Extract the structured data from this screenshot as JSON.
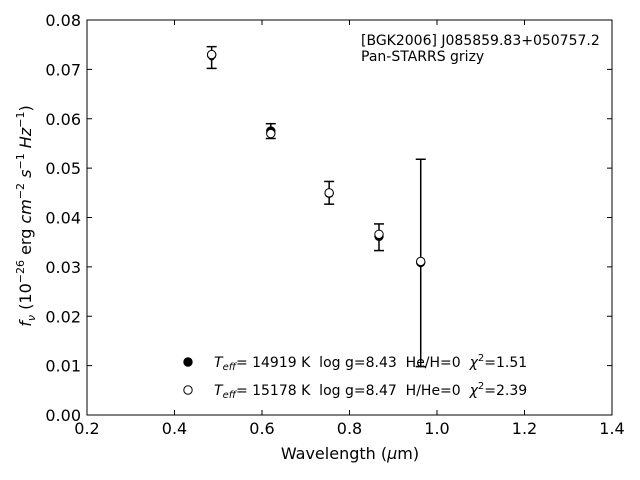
{
  "chart_data": {
    "type": "scatter",
    "title": "",
    "xlabel": "Wavelength (μm)",
    "ylabel": "f_ν (10^−26 erg cm^−2 s^−1 Hz^−1)",
    "xlim": [
      0.2,
      1.4
    ],
    "ylim": [
      0.0,
      0.08
    ],
    "xticks": [
      "0.2",
      "0.4",
      "0.6",
      "0.8",
      "1.0",
      "1.2",
      "1.4"
    ],
    "yticks": [
      "0.00",
      "0.01",
      "0.02",
      "0.03",
      "0.04",
      "0.05",
      "0.06",
      "0.07",
      "0.08"
    ],
    "grid": false,
    "legend_position": "bottom-center",
    "annotation": {
      "object": "[BGK2006] J085859.83+050757.2",
      "survey": "Pan-STARRS grizy"
    },
    "observed": {
      "x": [
        0.4849,
        0.6201,
        0.7535,
        0.8674,
        0.9628
      ],
      "y": [
        0.0724,
        0.0575,
        0.045,
        0.036,
        0.0308
      ],
      "yerr": [
        0.0022,
        0.0015,
        0.0023,
        0.0027,
        0.021
      ]
    },
    "series": [
      {
        "name_prefix": "T",
        "name_sub": "eff",
        "name_rest": "= 14919 K  log g=8.43  He/H=0  χ",
        "name_sup": "2",
        "name_end": "=1.51",
        "marker": "filled-circle",
        "x": [
          0.4849,
          0.6201,
          0.7535,
          0.8674,
          0.9628
        ],
        "y": [
          0.0729,
          0.0575,
          0.0449,
          0.0362,
          0.0309
        ]
      },
      {
        "name_prefix": "T",
        "name_sub": "eff",
        "name_rest": "= 15178 K  log g=8.47  H/He=0  χ",
        "name_sup": "2",
        "name_end": "=2.39",
        "marker": "open-circle",
        "x": [
          0.4849,
          0.6201,
          0.7535,
          0.8674,
          0.9628
        ],
        "y": [
          0.073,
          0.057,
          0.045,
          0.0366,
          0.0311
        ]
      }
    ]
  }
}
